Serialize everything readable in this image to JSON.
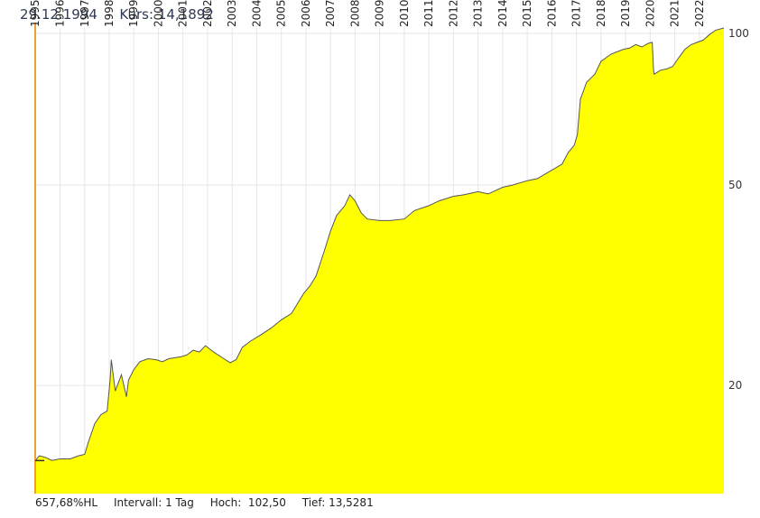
{
  "header": {
    "date": "29.12.1994",
    "separator": "-",
    "kurs_label": "Kurs:",
    "kurs_value": "14,1892"
  },
  "footer": {
    "change": "657,68%HL",
    "interval": "Intervall: 1 Tag",
    "high": "Hoch:  102,50",
    "low": "Tief: 13,5281"
  },
  "colors": {
    "fill": "#ffff00",
    "line": "#555555",
    "grid": "#e6e6e6",
    "marker": "#f0a030"
  },
  "chart_data": {
    "type": "area",
    "title": "",
    "xlabel": "",
    "ylabel": "",
    "y_scale": "log",
    "ylim": [
      12.2,
      102.5
    ],
    "xlim": [
      "1994-12-29",
      "2022-12-31"
    ],
    "x_tick_labels": [
      "1995",
      "1996",
      "1997",
      "1998",
      "1999",
      "2000",
      "2001",
      "2002",
      "2003",
      "2004",
      "2005",
      "2006",
      "2007",
      "2008",
      "2009",
      "2010",
      "2011",
      "2012",
      "2013",
      "2014",
      "2015",
      "2016",
      "2017",
      "2018",
      "2019",
      "2020",
      "2021",
      "2022"
    ],
    "y_tick_labels": [
      "100",
      "50",
      "20"
    ],
    "y_ticks": [
      100,
      50,
      20
    ],
    "grid": true,
    "series": [
      {
        "x": [
          "1994-12-29",
          "1995-03-01",
          "1995-06-01",
          "1995-09-01",
          "1996-01-01",
          "1996-06-01",
          "1996-10-01",
          "1997-01-01",
          "1997-03-01",
          "1997-06-01",
          "1997-09-01",
          "1997-12-01",
          "1998-01-15",
          "1998-02-01",
          "1998-04-01",
          "1998-07-01",
          "1998-09-15",
          "1998-10-15",
          "1999-01-01",
          "1999-04-01",
          "1999-08-01",
          "1999-12-01",
          "2000-03-01",
          "2000-06-01",
          "2000-12-01",
          "2001-03-01",
          "2001-06-01",
          "2001-09-01",
          "2001-12-01",
          "2002-04-01",
          "2002-09-01",
          "2002-12-01",
          "2003-03-01",
          "2003-06-01",
          "2003-10-01",
          "2004-03-01",
          "2004-08-01",
          "2005-01-01",
          "2005-06-01",
          "2005-12-01",
          "2006-03-01",
          "2006-06-01",
          "2006-10-01",
          "2007-01-01",
          "2007-04-01",
          "2007-08-01",
          "2007-10-15",
          "2008-01-01",
          "2008-04-01",
          "2008-07-01",
          "2009-01-01",
          "2009-06-01",
          "2010-01-01",
          "2010-06-01",
          "2011-01-01",
          "2011-06-01",
          "2012-01-01",
          "2012-06-01",
          "2013-01-01",
          "2013-06-01",
          "2014-01-01",
          "2014-06-01",
          "2015-01-01",
          "2015-06-01",
          "2016-01-01",
          "2016-06-01",
          "2016-09-01",
          "2016-12-01",
          "2017-01-15",
          "2017-03-01",
          "2017-06-01",
          "2017-10-01",
          "2018-01-01",
          "2018-06-01",
          "2018-12-01",
          "2019-03-01",
          "2019-06-01",
          "2019-09-01",
          "2019-12-01",
          "2020-02-01",
          "2020-02-20",
          "2020-03-01",
          "2020-06-01",
          "2020-09-01",
          "2020-12-01",
          "2021-03-01",
          "2021-06-01",
          "2021-09-01",
          "2021-12-01",
          "2022-03-01",
          "2022-06-01",
          "2022-09-01",
          "2022-12-31"
        ],
        "y": [
          14.19,
          14.5,
          14.4,
          14.2,
          14.3,
          14.3,
          14.5,
          14.6,
          15.5,
          16.8,
          17.5,
          17.8,
          20.5,
          22.5,
          19.5,
          21.0,
          19.0,
          20.5,
          21.5,
          22.3,
          22.6,
          22.5,
          22.3,
          22.6,
          22.8,
          23.0,
          23.5,
          23.3,
          24.0,
          23.3,
          22.6,
          22.2,
          22.5,
          23.8,
          24.5,
          25.2,
          26.0,
          27.0,
          27.8,
          30.5,
          31.5,
          33.0,
          37.0,
          40.5,
          43.5,
          45.5,
          47.8,
          46.5,
          44.0,
          42.8,
          42.5,
          42.5,
          42.8,
          44.5,
          45.5,
          46.5,
          47.5,
          47.8,
          48.5,
          48.0,
          49.5,
          50.0,
          51.0,
          51.5,
          53.5,
          55.0,
          58.0,
          60.0,
          63.0,
          74.0,
          80.0,
          83.0,
          88.0,
          91.0,
          93.0,
          93.5,
          95.0,
          94.0,
          95.5,
          96.0,
          84.5,
          83.0,
          84.5,
          85.0,
          86.0,
          89.5,
          93.0,
          95.0,
          96.0,
          97.0,
          99.5,
          101.5,
          102.5
        ]
      }
    ]
  }
}
